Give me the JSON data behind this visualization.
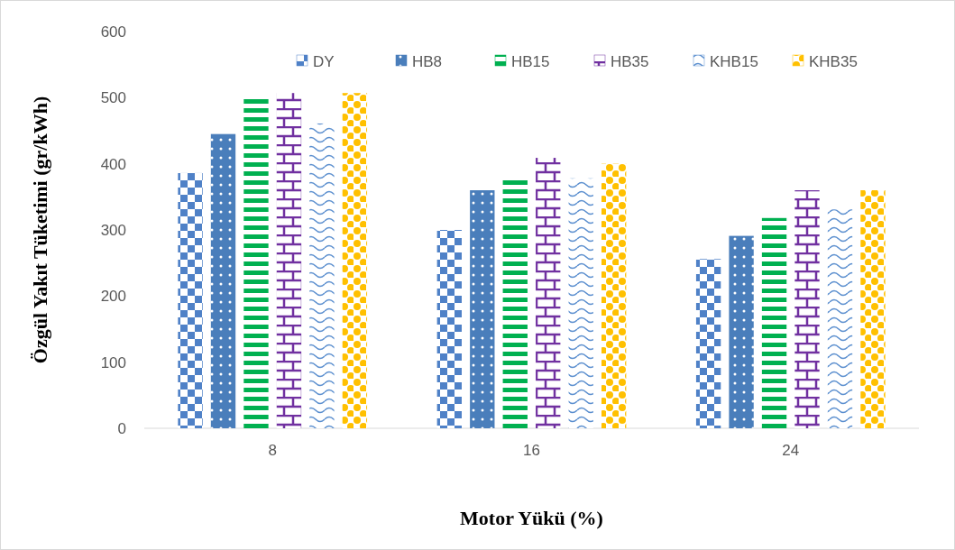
{
  "chart_data": {
    "type": "bar",
    "xlabel": "Motor Yükü (%)",
    "ylabel": "Özgül Yakıt Tüketimi (gr/kWh)",
    "categories": [
      "8",
      "16",
      "24"
    ],
    "series": [
      {
        "name": "DY",
        "color": "#4f81c7",
        "values": [
          386,
          300,
          256
        ]
      },
      {
        "name": "HB8",
        "color": "#4a7ebb",
        "values": [
          445,
          360,
          291
        ]
      },
      {
        "name": "HB15",
        "color": "#00b050",
        "values": [
          500,
          378,
          318
        ]
      },
      {
        "name": "HB35",
        "color": "#7030a0",
        "values": [
          507,
          409,
          360
        ]
      },
      {
        "name": "KHB15",
        "color": "#5b8fcf",
        "values": [
          461,
          378,
          331
        ]
      },
      {
        "name": "KHB35",
        "color": "#ffc000",
        "values": [
          507,
          400,
          360
        ]
      }
    ],
    "ylim": [
      0,
      600
    ],
    "yticks": [
      0,
      100,
      200,
      300,
      400,
      500,
      600
    ],
    "legend": "top right"
  }
}
